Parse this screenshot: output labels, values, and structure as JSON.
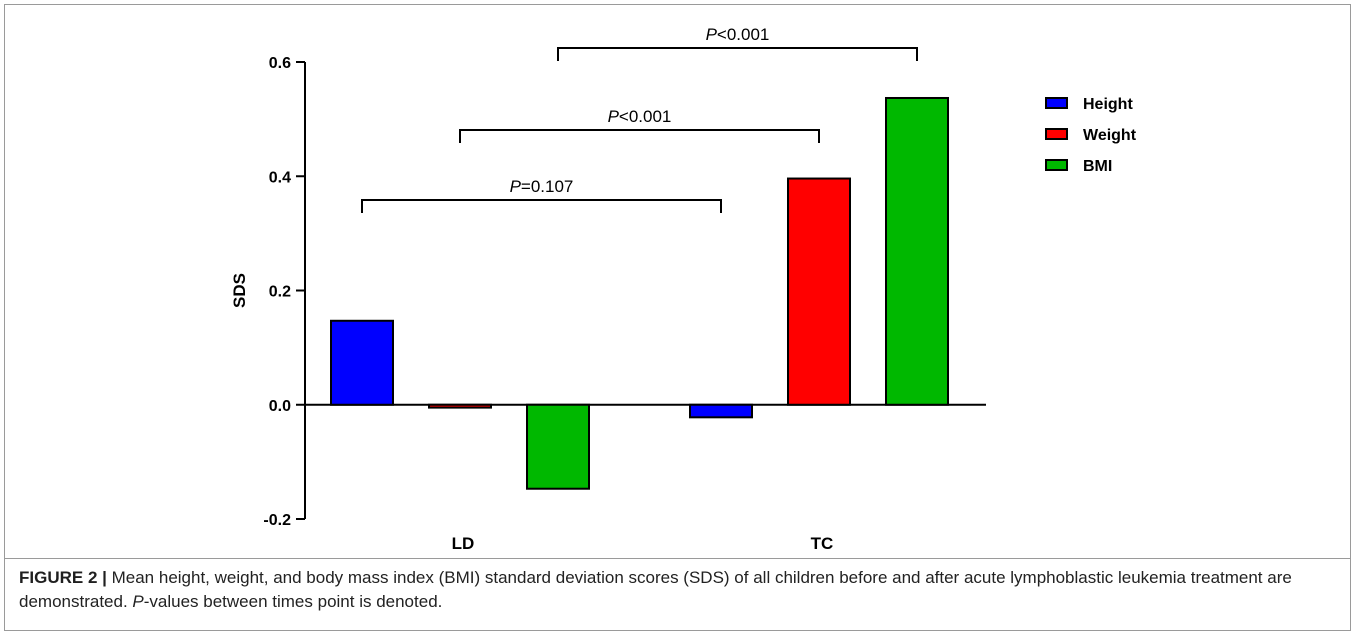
{
  "caption": {
    "label": "FIGURE 2 |",
    "text_before": " Mean height, weight, and body mass index (BMI) standard deviation scores (SDS) of all children before and after acute lymphoblastic leukemia treatment are demonstrated. ",
    "italic": "P",
    "text_after": "-values between times point is denoted."
  },
  "chart_data": {
    "type": "bar",
    "title": "",
    "xlabel": "",
    "ylabel": "SDS",
    "ylim": [
      -0.2,
      0.6
    ],
    "yticks": [
      "-0.2",
      "0.0",
      "0.2",
      "0.4",
      "0.6"
    ],
    "categories": [
      "LD",
      "TC"
    ],
    "series": [
      {
        "name": "Height",
        "color": "#0000ff",
        "values": [
          0.147,
          -0.022
        ]
      },
      {
        "name": "Weight",
        "color": "#ff0000",
        "values": [
          -0.005,
          0.396
        ]
      },
      {
        "name": "BMI",
        "color": "#00b800",
        "values": [
          -0.147,
          0.537
        ]
      }
    ],
    "legend_position": "top-right",
    "grid": false,
    "annotations": [
      {
        "italic": "P",
        "text": "=0.107",
        "from": {
          "category": 0,
          "series": 0
        },
        "to": {
          "category": 1,
          "series": 0
        }
      },
      {
        "italic": "P",
        "text": "<0.001",
        "from": {
          "category": 0,
          "series": 1
        },
        "to": {
          "category": 1,
          "series": 1
        }
      },
      {
        "italic": "P",
        "text": "<0.001",
        "from": {
          "category": 0,
          "series": 2
        },
        "to": {
          "category": 1,
          "series": 2
        }
      }
    ]
  }
}
